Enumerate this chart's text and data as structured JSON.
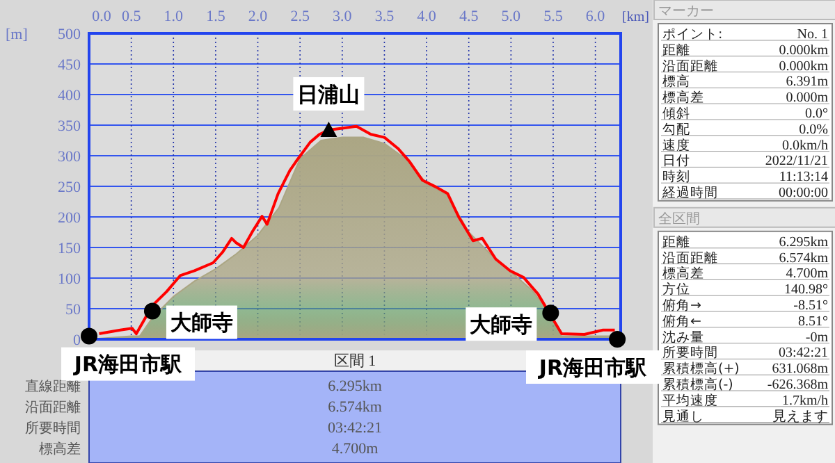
{
  "chart_data": [
    {
      "type": "line",
      "xlabel": "[km]",
      "ylabel": "[m]",
      "xlim": [
        0,
        6.3
      ],
      "ylim": [
        0,
        500
      ],
      "xticks": [
        {
          "value": 0,
          "label": "0.0"
        },
        {
          "value": 0.5,
          "label": "0.5"
        },
        {
          "value": 1,
          "label": "1.0"
        },
        {
          "value": 1.5,
          "label": "1.5"
        },
        {
          "value": 2,
          "label": "2.0"
        },
        {
          "value": 2.5,
          "label": "2.5"
        },
        {
          "value": 3,
          "label": "3.0"
        },
        {
          "value": 3.5,
          "label": "3.5"
        },
        {
          "value": 4,
          "label": "4.0"
        },
        {
          "value": 4.5,
          "label": "4.5"
        },
        {
          "value": 5,
          "label": "5.0"
        },
        {
          "value": 5.5,
          "label": "5.5"
        },
        {
          "value": 6,
          "label": "6.0"
        }
      ],
      "yticks": [
        0,
        50,
        100,
        150,
        200,
        250,
        300,
        350,
        400,
        450,
        500
      ],
      "grid": true,
      "series": [
        {
          "type": "area",
          "color": "#aba684",
          "x": [
            0,
            0.5,
            0.6,
            0.75,
            1.0,
            1.25,
            1.5,
            1.75,
            2.0,
            2.25,
            2.5,
            2.75,
            3.0,
            3.25,
            3.5,
            3.75,
            4.0,
            4.25,
            4.5,
            4.75,
            5.0,
            5.25,
            5.5,
            5.6,
            6.0,
            6.3
          ],
          "values": [
            0,
            5,
            5,
            35,
            70,
            95,
            115,
            140,
            170,
            215,
            295,
            325,
            330,
            330,
            320,
            295,
            255,
            235,
            175,
            140,
            110,
            80,
            35,
            5,
            5,
            5
          ]
        },
        {
          "type": "line",
          "color": "#ff0000",
          "x": [
            0.12,
            0.37,
            0.51,
            0.56,
            0.75,
            0.92,
            1.08,
            1.25,
            1.47,
            1.58,
            1.69,
            1.74,
            1.83,
            1.94,
            2.05,
            2.11,
            2.24,
            2.38,
            2.45,
            2.62,
            2.73,
            2.84,
            3.0,
            3.17,
            3.34,
            3.5,
            3.66,
            3.8,
            3.95,
            4.11,
            4.25,
            4.38,
            4.55,
            4.66,
            4.82,
            4.99,
            5.15,
            5.32,
            5.6,
            5.87,
            6.09,
            6.23
          ],
          "values": [
            9,
            15,
            18,
            9,
            55,
            78,
            104,
            112,
            125,
            142,
            165,
            158,
            150,
            177,
            201,
            188,
            238,
            276,
            290,
            322,
            335,
            342,
            345,
            348,
            335,
            330,
            312,
            290,
            260,
            249,
            238,
            200,
            161,
            165,
            131,
            112,
            101,
            74,
            9,
            8,
            15,
            15
          ]
        },
        {
          "type": "scatter",
          "marker": "circle",
          "color": "#000000",
          "x": [
            0,
            0.75,
            5.47,
            6.26
          ],
          "values": [
            5,
            46,
            43,
            0
          ]
        },
        {
          "type": "scatter",
          "marker": "triangle",
          "color": "#000000",
          "x": [
            2.84
          ],
          "values": [
            342
          ]
        }
      ],
      "annotations": [
        {
          "text": "日浦山",
          "x": 2.84,
          "y": 342
        },
        {
          "text": "大師寺",
          "x": 0.75,
          "y": 46
        },
        {
          "text": "大師寺",
          "x": 5.47,
          "y": 43
        },
        {
          "text": "JR海田市駅",
          "x": 0,
          "y": 5
        },
        {
          "text": "JR海田市駅",
          "x": 6.26,
          "y": 0
        }
      ]
    },
    {
      "type": "other",
      "title": "区間 1",
      "annotations": [
        "直線距離",
        "6.295km",
        "沿面距離",
        "6.574km",
        "所要時間",
        "03:42:21",
        "標高差",
        "4.700m"
      ]
    },
    {
      "type": "other",
      "title": "マーカー",
      "annotations": [
        "ポイント:",
        "No. 1",
        "距離",
        "0.000km",
        "沿面距離",
        "0.000km",
        "標高",
        "6.391m",
        "標高差",
        "0.000m",
        "傾斜",
        "0.0°",
        "勾配",
        "0.0%",
        "速度",
        "0.0km/h",
        "日付",
        "2022/11/21",
        "時刻",
        "11:13:14",
        "経過時間",
        "00:00:00"
      ]
    },
    {
      "type": "other",
      "title": "全区間",
      "annotations": [
        "距離",
        "6.295km",
        "沿面距離",
        "6.574km",
        "標高差",
        "4.700m",
        "方位",
        "140.98°",
        "俯角→",
        "-8.51°",
        "俯角←",
        "8.51°",
        "沈み量",
        "-0m",
        "所要時間",
        "03:42:21",
        "累積標高(+)",
        "631.068m",
        "累積標高(-)",
        "-626.368m",
        "平均速度",
        "1.7km/h",
        "見通し",
        "見えます"
      ]
    }
  ]
}
